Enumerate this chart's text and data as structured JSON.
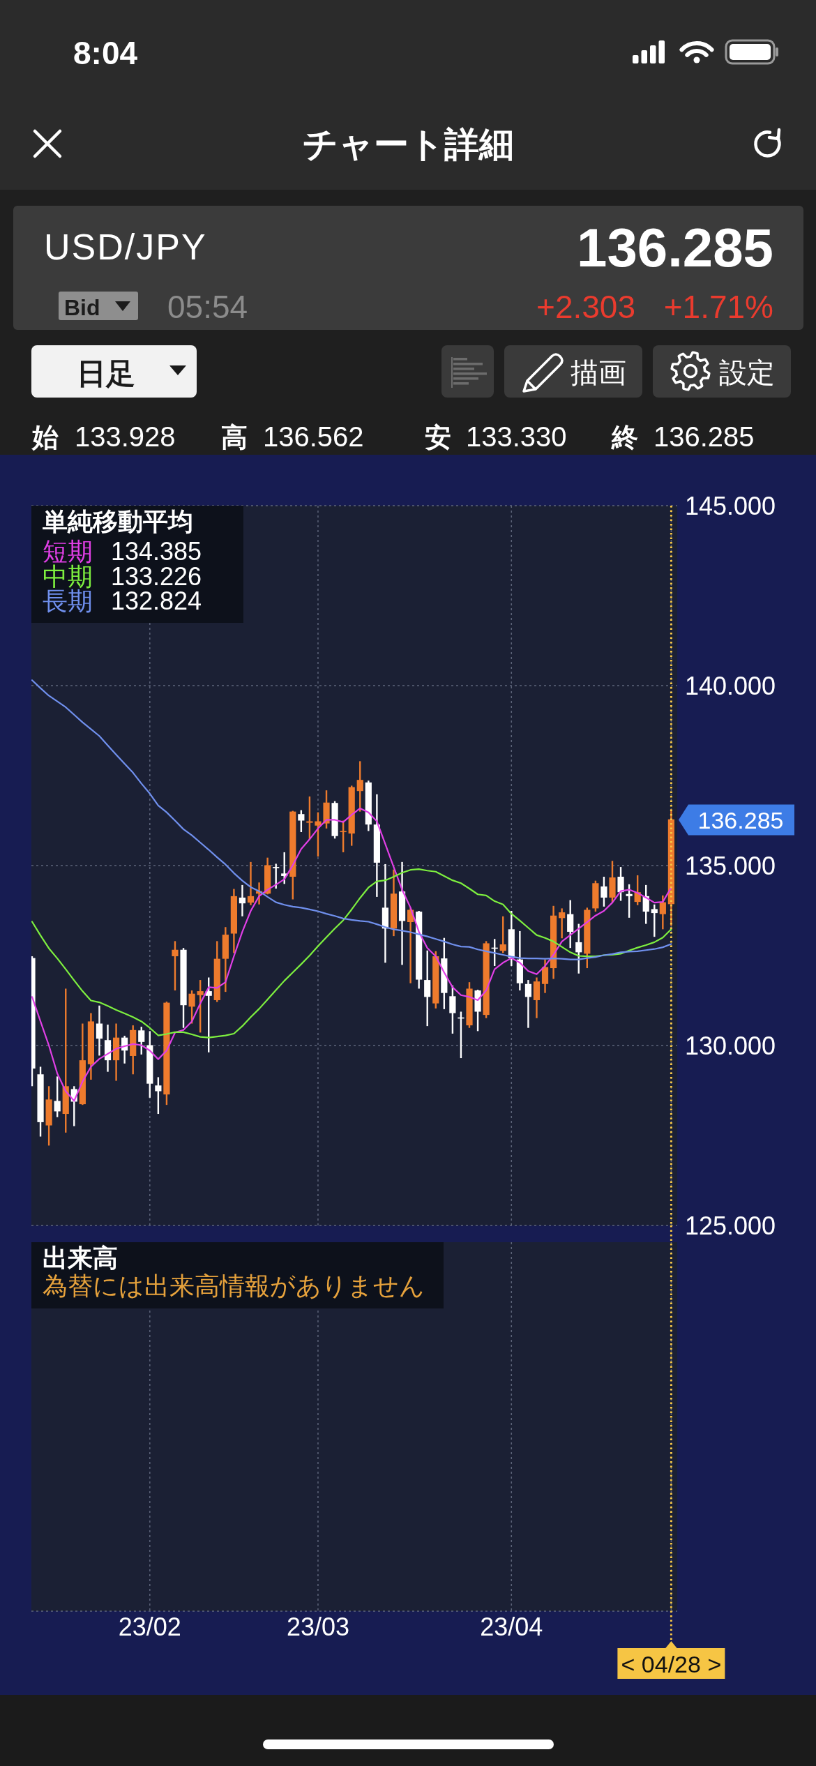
{
  "chart_data": [
    {
      "type": "candlestick",
      "title": "USD/JPY",
      "categories": [
        null,
        null,
        null,
        null,
        null,
        null,
        null,
        null,
        null,
        null,
        null,
        null,
        null,
        null,
        "23/02",
        null,
        null,
        null,
        null,
        null,
        null,
        null,
        null,
        null,
        null,
        null,
        null,
        null,
        null,
        null,
        null,
        null,
        null,
        null,
        "23/03",
        null,
        null,
        null,
        null,
        null,
        null,
        null,
        null,
        null,
        null,
        null,
        null,
        null,
        null,
        null,
        null,
        null,
        null,
        null,
        null,
        null,
        null,
        "23/04",
        null,
        null,
        null,
        null,
        null,
        null,
        null,
        null,
        null,
        null,
        null,
        null,
        null,
        null,
        null,
        null,
        null,
        null,
        "< 04/28 >"
      ],
      "ohlc": [
        [
          132.43,
          132.48,
          128.87,
          129.36
        ],
        [
          129.2,
          129.41,
          127.47,
          127.87
        ],
        [
          127.78,
          128.87,
          127.22,
          128.5
        ],
        [
          128.46,
          129.14,
          128.01,
          128.17
        ],
        [
          128.1,
          131.58,
          127.58,
          128.87
        ],
        [
          128.79,
          128.87,
          127.76,
          128.44
        ],
        [
          128.37,
          130.61,
          128.35,
          129.59
        ],
        [
          129.48,
          130.9,
          129.05,
          130.67
        ],
        [
          130.61,
          131.11,
          129.72,
          130.19
        ],
        [
          130.15,
          130.58,
          129.27,
          129.59
        ],
        [
          129.59,
          130.61,
          129.02,
          130.22
        ],
        [
          130.22,
          130.27,
          129.5,
          129.86
        ],
        [
          129.71,
          130.56,
          129.2,
          130.43
        ],
        [
          130.42,
          130.52,
          129.75,
          130.1
        ],
        [
          130.01,
          130.4,
          128.55,
          128.94
        ],
        [
          128.89,
          129.12,
          128.1,
          128.73
        ],
        [
          128.64,
          131.22,
          128.35,
          131.19
        ],
        [
          132.48,
          132.9,
          131.53,
          132.66
        ],
        [
          132.66,
          132.71,
          130.49,
          131.12
        ],
        [
          131.08,
          131.53,
          130.61,
          131.44
        ],
        [
          131.4,
          131.82,
          130.36,
          131.51
        ],
        [
          131.51,
          131.89,
          129.81,
          131.38
        ],
        [
          131.26,
          132.9,
          131.21,
          132.41
        ],
        [
          132.41,
          133.29,
          131.49,
          133.08
        ],
        [
          133.11,
          134.35,
          132.57,
          134.15
        ],
        [
          134.11,
          134.46,
          133.59,
          133.95
        ],
        [
          133.97,
          135.1,
          133.9,
          134.15
        ],
        [
          134.22,
          134.53,
          133.92,
          134.29
        ],
        [
          134.22,
          135.22,
          134.2,
          135.01
        ],
        [
          134.96,
          135.05,
          134.36,
          134.93
        ],
        [
          134.78,
          135.37,
          134.49,
          134.71
        ],
        [
          134.69,
          136.52,
          134.06,
          136.5
        ],
        [
          136.43,
          136.54,
          135.93,
          136.25
        ],
        [
          136.19,
          136.92,
          135.73,
          136.23
        ],
        [
          136.11,
          136.48,
          135.25,
          136.23
        ],
        [
          136.17,
          137.09,
          136.03,
          136.75
        ],
        [
          136.74,
          136.79,
          135.75,
          135.82
        ],
        [
          135.94,
          136.25,
          135.37,
          135.96
        ],
        [
          135.89,
          137.22,
          135.55,
          137.18
        ],
        [
          137.07,
          137.9,
          136.5,
          137.38
        ],
        [
          137.31,
          137.36,
          135.96,
          136.14
        ],
        [
          136.14,
          136.98,
          134.13,
          135.08
        ],
        [
          133.83,
          135.04,
          132.3,
          133.25
        ],
        [
          133.25,
          134.89,
          133.04,
          134.22
        ],
        [
          134.28,
          135.1,
          132.24,
          133.46
        ],
        [
          133.43,
          133.83,
          131.73,
          133.77
        ],
        [
          133.72,
          133.74,
          131.58,
          131.83
        ],
        [
          131.82,
          132.64,
          130.54,
          131.35
        ],
        [
          131.17,
          132.62,
          131.03,
          132.48
        ],
        [
          132.42,
          132.99,
          131.01,
          131.46
        ],
        [
          131.37,
          131.67,
          130.33,
          130.9
        ],
        [
          130.78,
          130.94,
          129.65,
          130.75
        ],
        [
          130.56,
          131.76,
          130.49,
          131.58
        ],
        [
          131.53,
          131.55,
          130.4,
          130.94
        ],
        [
          130.85,
          132.9,
          130.76,
          132.84
        ],
        [
          132.72,
          132.96,
          132.21,
          132.69
        ],
        [
          132.63,
          133.59,
          132.57,
          132.81
        ],
        [
          133.23,
          133.74,
          132.21,
          132.43
        ],
        [
          132.39,
          133.18,
          131.53,
          131.73
        ],
        [
          131.71,
          131.82,
          130.49,
          131.35
        ],
        [
          131.26,
          131.89,
          130.76,
          131.78
        ],
        [
          131.71,
          132.39,
          131.46,
          132.18
        ],
        [
          132.15,
          133.88,
          131.85,
          133.61
        ],
        [
          133.54,
          133.81,
          132.98,
          133.7
        ],
        [
          133.65,
          134.04,
          132.71,
          133.16
        ],
        [
          132.87,
          133.38,
          132.0,
          132.59
        ],
        [
          132.55,
          133.83,
          132.15,
          133.77
        ],
        [
          133.81,
          134.58,
          133.72,
          134.51
        ],
        [
          134.42,
          134.69,
          133.86,
          134.11
        ],
        [
          134.11,
          135.13,
          133.97,
          134.67
        ],
        [
          134.69,
          134.96,
          134.02,
          134.26
        ],
        [
          134.21,
          134.48,
          133.55,
          134.15
        ],
        [
          133.99,
          134.73,
          133.9,
          134.26
        ],
        [
          134.15,
          134.46,
          133.38,
          133.72
        ],
        [
          133.79,
          133.92,
          133.02,
          133.68
        ],
        [
          133.65,
          134.17,
          133.23,
          133.98
        ],
        [
          133.928,
          136.562,
          133.33,
          136.285
        ]
      ],
      "colors": [
        "#ffffff",
        "#ffffff",
        "#ee7b2d",
        "#ffffff",
        "#ee7b2d",
        "#ffffff",
        "#ee7b2d",
        "#ee7b2d",
        "#ffffff",
        "#ffffff",
        "#ee7b2d",
        "#ffffff",
        "#ee7b2d",
        "#ffffff",
        "#ffffff",
        "#ffffff",
        "#ee7b2d",
        "#ee7b2d",
        "#ffffff",
        "#ee7b2d",
        "#ee7b2d",
        "#ffffff",
        "#ee7b2d",
        "#ee7b2d",
        "#ee7b2d",
        "#ffffff",
        "#ee7b2d",
        "#ee7b2d",
        "#ee7b2d",
        "#ffffff",
        "#ffffff",
        "#ee7b2d",
        "#ffffff",
        "#ee7b2d",
        "#ee7b2d",
        "#ee7b2d",
        "#ffffff",
        "#ee7b2d",
        "#ee7b2d",
        "#ee7b2d",
        "#ffffff",
        "#ffffff",
        "#ffffff",
        "#ee7b2d",
        "#ffffff",
        "#ee7b2d",
        "#ffffff",
        "#ffffff",
        "#ee7b2d",
        "#ffffff",
        "#ffffff",
        "#ffffff",
        "#ee7b2d",
        "#ffffff",
        "#ee7b2d",
        "#ffffff",
        "#ee7b2d",
        "#ffffff",
        "#ffffff",
        "#ffffff",
        "#ee7b2d",
        "#ee7b2d",
        "#ee7b2d",
        "#ee7b2d",
        "#ffffff",
        "#ffffff",
        "#ee7b2d",
        "#ee7b2d",
        "#ffffff",
        "#ee7b2d",
        "#ffffff",
        "#ffffff",
        "#ee7b2d",
        "#ffffff",
        "#ffffff",
        "#ee7b2d",
        "#ee7b2d"
      ],
      "series": [
        {
          "name": "短期",
          "type": "line",
          "color": "#e13fe6",
          "values": [
            131.35,
            130.67,
            130.0,
            129.22,
            128.73,
            128.46,
            129.0,
            129.41,
            129.63,
            129.77,
            129.91,
            129.98,
            130.04,
            130.01,
            129.86,
            129.62,
            129.86,
            130.36,
            130.43,
            130.67,
            131.17,
            131.62,
            131.6,
            131.76,
            132.48,
            133.16,
            133.74,
            134.15,
            134.33,
            134.47,
            134.62,
            135.01,
            135.46,
            135.73,
            136.03,
            136.27,
            136.27,
            136.21,
            136.41,
            136.59,
            136.48,
            136.23,
            135.6,
            134.96,
            134.33,
            133.83,
            133.16,
            132.71,
            132.48,
            132.03,
            131.62,
            131.4,
            131.35,
            131.26,
            131.53,
            132.12,
            132.3,
            132.43,
            132.3,
            132.07,
            131.98,
            132.21,
            132.52,
            132.89,
            133.07,
            133.25,
            133.43,
            133.61,
            133.74,
            133.97,
            134.29,
            134.33,
            134.24,
            134.11,
            133.97,
            133.99,
            134.39
          ]
        },
        {
          "name": "中期",
          "type": "line",
          "color": "#7ef03f",
          "values": [
            133.44,
            133.06,
            132.7,
            132.42,
            132.12,
            131.81,
            131.51,
            131.25,
            131.2,
            131.1,
            130.99,
            130.89,
            130.79,
            130.67,
            130.49,
            130.28,
            130.32,
            130.37,
            130.37,
            130.31,
            130.24,
            130.22,
            130.25,
            130.28,
            130.33,
            130.54,
            130.79,
            131.02,
            131.28,
            131.54,
            131.8,
            132.03,
            132.26,
            132.5,
            132.76,
            133.01,
            133.25,
            133.48,
            133.78,
            134.1,
            134.39,
            134.56,
            134.59,
            134.69,
            134.8,
            134.88,
            134.9,
            134.86,
            134.83,
            134.71,
            134.59,
            134.51,
            134.36,
            134.2,
            134.17,
            134.01,
            133.92,
            133.66,
            133.47,
            133.27,
            133.07,
            132.99,
            132.89,
            132.74,
            132.59,
            132.49,
            132.48,
            132.48,
            132.51,
            132.52,
            132.55,
            132.64,
            132.72,
            132.79,
            132.87,
            133.0,
            133.23
          ]
        },
        {
          "name": "長期",
          "type": "line",
          "color": "#7090ee",
          "values": [
            140.15,
            139.93,
            139.72,
            139.56,
            139.4,
            139.19,
            138.98,
            138.79,
            138.6,
            138.34,
            138.08,
            137.83,
            137.58,
            137.28,
            137.0,
            136.67,
            136.48,
            136.25,
            136.01,
            135.84,
            135.64,
            135.44,
            135.23,
            135.03,
            134.79,
            134.58,
            134.4,
            134.29,
            134.13,
            133.98,
            133.91,
            133.86,
            133.83,
            133.78,
            133.73,
            133.66,
            133.6,
            133.53,
            133.49,
            133.46,
            133.44,
            133.37,
            133.29,
            133.23,
            133.19,
            133.15,
            133.09,
            133.03,
            132.96,
            132.89,
            132.81,
            132.75,
            132.74,
            132.67,
            132.62,
            132.57,
            132.52,
            132.47,
            132.43,
            132.42,
            132.42,
            132.41,
            132.42,
            132.41,
            132.39,
            132.39,
            132.43,
            132.46,
            132.51,
            132.54,
            132.59,
            132.61,
            132.62,
            132.65,
            132.68,
            132.73,
            132.82
          ]
        }
      ],
      "legend": "top left",
      "legend_title": "単純移動平均",
      "ylim": [
        125,
        145
      ],
      "yticks": [
        {
          "value": 125,
          "label": "125.000"
        },
        {
          "value": 130,
          "label": "130.000"
        },
        {
          "value": 135,
          "label": "135.000"
        },
        {
          "value": 140,
          "label": "140.000"
        },
        {
          "value": 145,
          "label": "145.000"
        }
      ],
      "tick_labels": "y",
      "grid": true,
      "ref_lines": [
        {
          "axis": "x",
          "value": "< 04/28 >",
          "color": "#f6c544",
          "line_style": "dotted"
        }
      ],
      "annotations": [
        "8:04",
        "チャート詳細",
        "136.285",
        "Bid",
        "05:54",
        "+2.303",
        "+1.71%",
        "日足",
        "描画",
        "設定",
        "始",
        "133.928",
        "高",
        "136.562",
        "安",
        "133.330",
        "終",
        "136.285",
        "134.385",
        "133.226",
        "132.824",
        "136.285"
      ]
    },
    {
      "type": "other",
      "title": "出来高",
      "annotations": [
        "為替には出来高情報がありません"
      ],
      "categories": [
        null,
        null,
        null,
        null,
        null,
        null,
        null,
        null,
        null,
        null,
        null,
        null,
        null,
        null,
        "23/02",
        null,
        null,
        null,
        null,
        null,
        null,
        null,
        null,
        null,
        null,
        null,
        null,
        null,
        null,
        null,
        null,
        null,
        null,
        null,
        "23/03",
        null,
        null,
        null,
        null,
        null,
        null,
        null,
        null,
        null,
        null,
        null,
        null,
        null,
        null,
        null,
        null,
        null,
        null,
        null,
        null,
        null,
        null,
        "23/04",
        null,
        null,
        null,
        null,
        null,
        null,
        null,
        null,
        null,
        null,
        null,
        null,
        null,
        null,
        null,
        null,
        null,
        null,
        "< 04/28 >"
      ]
    }
  ]
}
